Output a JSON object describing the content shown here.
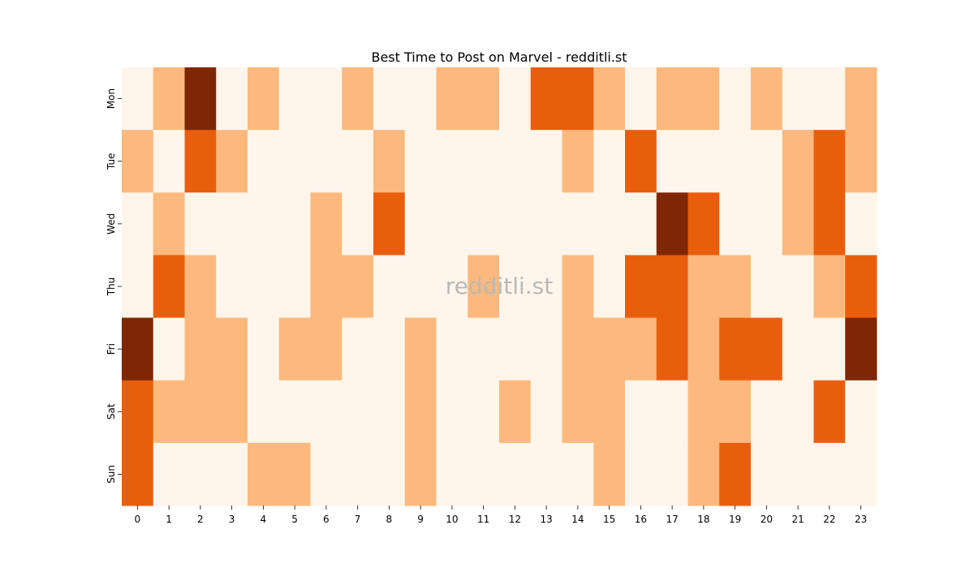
{
  "chart_data": {
    "type": "heatmap",
    "title": "Best Time to Post on Marvel - redditli.st",
    "xlabel": "",
    "ylabel": "",
    "x_categories": [
      "0",
      "1",
      "2",
      "3",
      "4",
      "5",
      "6",
      "7",
      "8",
      "9",
      "10",
      "11",
      "12",
      "13",
      "14",
      "15",
      "16",
      "17",
      "18",
      "19",
      "20",
      "21",
      "22",
      "23"
    ],
    "y_categories": [
      "Mon",
      "Tue",
      "Wed",
      "Thu",
      "Fri",
      "Sat",
      "Sun"
    ],
    "levels": [
      0,
      1,
      2,
      3
    ],
    "values": [
      [
        0,
        1,
        3,
        0,
        1,
        0,
        0,
        1,
        0,
        0,
        1,
        1,
        0,
        2,
        2,
        1,
        0,
        1,
        1,
        0,
        1,
        0,
        0,
        1
      ],
      [
        1,
        0,
        2,
        1,
        0,
        0,
        0,
        0,
        1,
        0,
        0,
        0,
        0,
        0,
        1,
        0,
        2,
        0,
        0,
        0,
        0,
        1,
        2,
        1
      ],
      [
        0,
        1,
        0,
        0,
        0,
        0,
        1,
        0,
        2,
        0,
        0,
        0,
        0,
        0,
        0,
        0,
        0,
        3,
        2,
        0,
        0,
        1,
        2,
        0
      ],
      [
        0,
        2,
        1,
        0,
        0,
        0,
        1,
        1,
        0,
        0,
        0,
        1,
        0,
        0,
        1,
        0,
        2,
        2,
        1,
        1,
        0,
        0,
        1,
        2
      ],
      [
        3,
        0,
        1,
        1,
        0,
        1,
        1,
        0,
        0,
        1,
        0,
        0,
        0,
        0,
        1,
        1,
        1,
        2,
        1,
        2,
        2,
        0,
        0,
        3
      ],
      [
        2,
        1,
        1,
        1,
        0,
        0,
        0,
        0,
        0,
        1,
        0,
        0,
        1,
        0,
        1,
        1,
        0,
        0,
        1,
        1,
        0,
        0,
        2,
        0
      ],
      [
        2,
        0,
        0,
        0,
        1,
        1,
        0,
        0,
        0,
        1,
        0,
        0,
        0,
        0,
        0,
        1,
        0,
        0,
        1,
        2,
        0,
        0,
        0,
        0
      ]
    ],
    "colormap": [
      "#fff5eb",
      "#fdb97d",
      "#e95e0d",
      "#7f2704"
    ],
    "colorbar": false,
    "grid": false
  },
  "watermark": "redditli.st"
}
